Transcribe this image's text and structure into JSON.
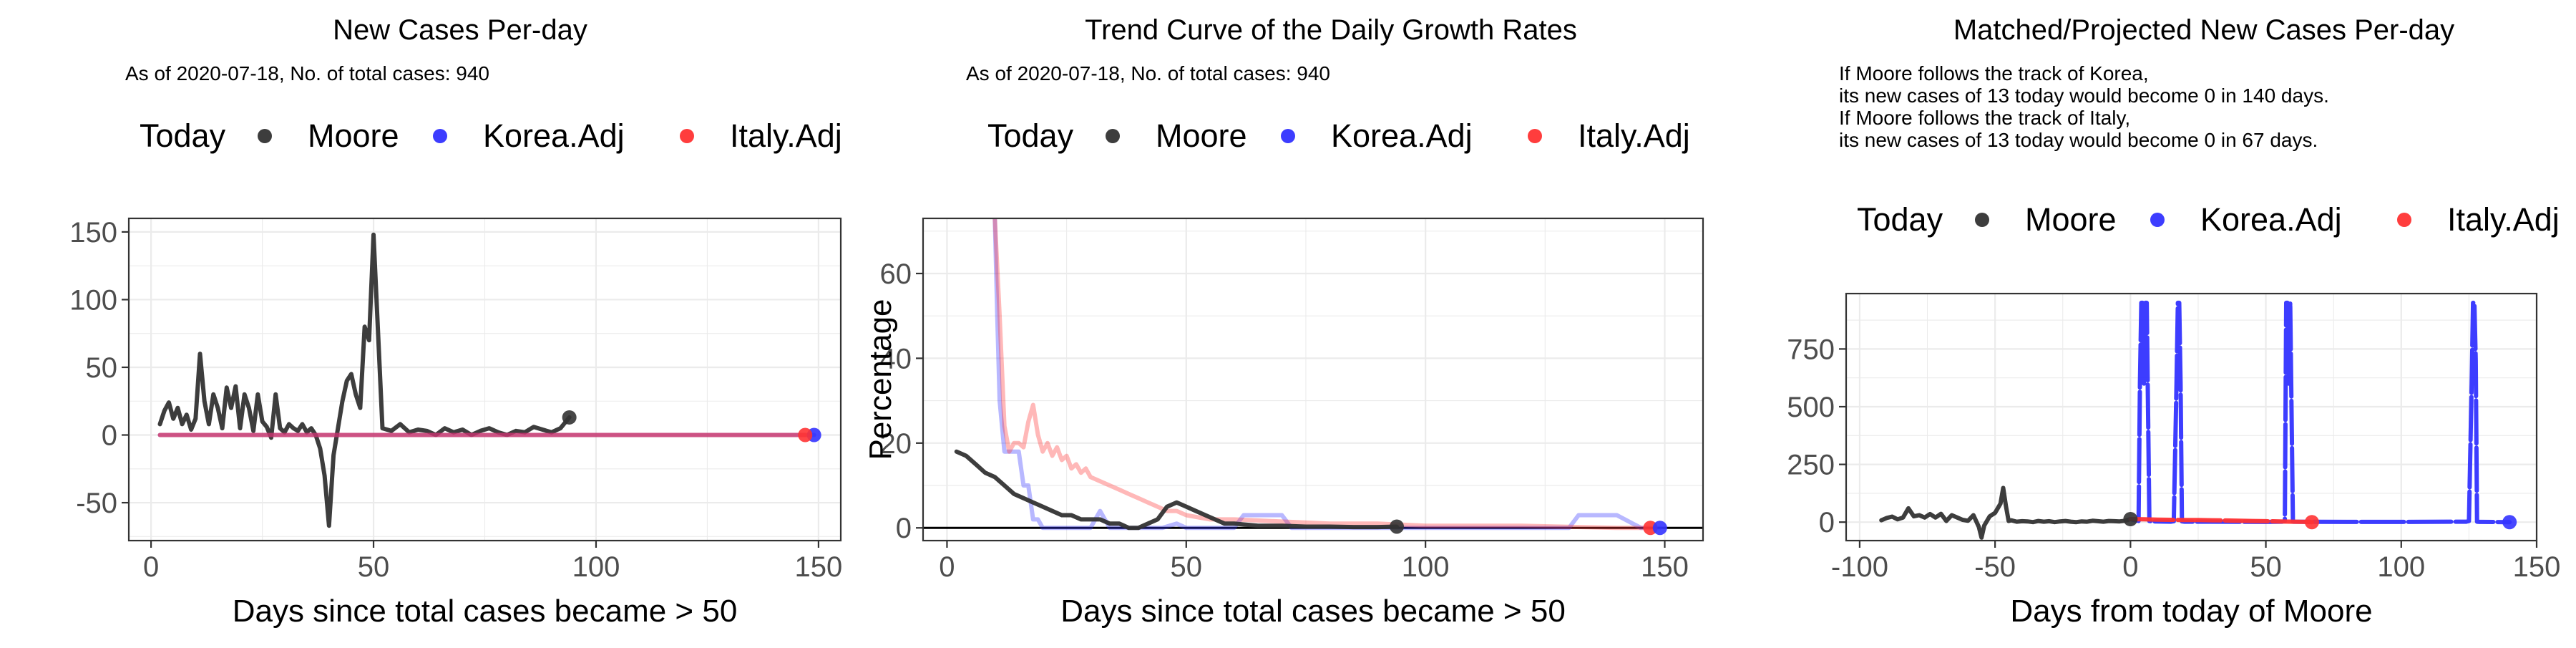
{
  "colors": {
    "moore": "#333333",
    "korea": "#3333ff",
    "italy": "#ff3333",
    "grid": "#ebebeb"
  },
  "legend": {
    "heading": "Today",
    "items": [
      "Moore",
      "Korea.Adj",
      "Italy.Adj"
    ]
  },
  "charts": [
    {
      "title": "New Cases Per-day",
      "subtitle": [
        "As of 2020-07-18, No. of total cases: 940"
      ],
      "chart_data": {
        "type": "line",
        "xlabel": "Days since total cases became > 50",
        "ylabel": "",
        "xlim": [
          -5,
          155
        ],
        "ylim": [
          -78,
          160
        ],
        "xticks": [
          0,
          50,
          100,
          150
        ],
        "yticks": [
          -50,
          0,
          50,
          100,
          150
        ],
        "series": [
          {
            "name": "Moore",
            "color": "#333333",
            "x": [
              2,
              3,
              4,
              5,
              6,
              7,
              8,
              9,
              10,
              11,
              12,
              13,
              14,
              15,
              16,
              17,
              18,
              19,
              20,
              21,
              22,
              23,
              24,
              25,
              26,
              27,
              28,
              29,
              30,
              31,
              32,
              33,
              34,
              35,
              36,
              37,
              38,
              39,
              40,
              41,
              42,
              43,
              44,
              45,
              46,
              47,
              48,
              49,
              50,
              52,
              54,
              56,
              58,
              60,
              62,
              64,
              66,
              68,
              70,
              72,
              74,
              76,
              78,
              80,
              82,
              84,
              86,
              88,
              90,
              92,
              94
            ],
            "y": [
              8,
              18,
              24,
              12,
              20,
              8,
              15,
              4,
              12,
              60,
              25,
              8,
              30,
              20,
              5,
              35,
              20,
              36,
              5,
              30,
              20,
              3,
              30,
              10,
              6,
              -2,
              30,
              5,
              2,
              8,
              5,
              3,
              8,
              2,
              5,
              0,
              -10,
              -30,
              -67,
              -15,
              5,
              25,
              40,
              45,
              30,
              20,
              80,
              70,
              148,
              5,
              3,
              8,
              2,
              4,
              3,
              0,
              5,
              2,
              4,
              0,
              3,
              5,
              2,
              0,
              3,
              2,
              6,
              4,
              2,
              5,
              13
            ]
          },
          {
            "name": "Korea.Adj",
            "color": "#3333ff",
            "x": [
              2,
              149
            ],
            "y": [
              0,
              0
            ]
          },
          {
            "name": "Italy.Adj",
            "color": "#ff3333",
            "x": [
              2,
              147
            ],
            "y": [
              0,
              0
            ]
          }
        ],
        "today_points": [
          {
            "series": "Moore",
            "x": 94,
            "y": 13
          },
          {
            "series": "Korea.Adj",
            "x": 149,
            "y": 0
          },
          {
            "series": "Italy.Adj",
            "x": 147,
            "y": 0
          }
        ]
      }
    },
    {
      "title": "Trend Curve of the Daily Growth Rates",
      "subtitle": [
        "As of 2020-07-18, No. of total cases: 940"
      ],
      "chart_data": {
        "type": "line",
        "xlabel": "Days since total cases became > 50",
        "ylabel": "Percentage",
        "xlim": [
          -5,
          158
        ],
        "ylim": [
          -3,
          73
        ],
        "xticks": [
          0,
          50,
          100,
          150
        ],
        "yticks": [
          0,
          20,
          40,
          60
        ],
        "series": [
          {
            "name": "Korea.Adj",
            "color": "#3333ff",
            "x": [
              10,
              10.5,
              11,
              12,
              13,
              14,
              15,
              16,
              17,
              18,
              19,
              20,
              22,
              24,
              30,
              32,
              34,
              40,
              45,
              48,
              50,
              55,
              60,
              62,
              64,
              66,
              70,
              72,
              75,
              80,
              85,
              90,
              95,
              100,
              110,
              120,
              130,
              132,
              134,
              140,
              145,
              149
            ],
            "y": [
              73,
              50,
              30,
              18,
              18,
              18,
              18,
              10,
              10,
              2,
              2,
              0,
              0,
              0,
              0,
              4,
              0,
              0,
              0,
              1,
              0,
              0,
              0,
              3,
              3,
              3,
              3,
              0,
              0,
              0,
              0,
              0,
              0,
              0,
              0,
              0,
              0,
              3,
              3,
              3,
              0,
              0
            ]
          },
          {
            "name": "Italy.Adj",
            "color": "#ff3333",
            "x": [
              10,
              11,
              12,
              13,
              14,
              15,
              16,
              17,
              18,
              19,
              20,
              21,
              22,
              23,
              24,
              25,
              26,
              27,
              28,
              29,
              30,
              32,
              34,
              36,
              38,
              40,
              42,
              44,
              46,
              48,
              50,
              55,
              60,
              70,
              80,
              90,
              100,
              120,
              140,
              147
            ],
            "y": [
              73,
              50,
              24,
              18,
              20,
              20,
              19,
              25,
              29,
              22,
              18,
              20,
              17,
              19,
              16,
              17,
              14,
              15,
              13,
              14,
              12,
              11,
              10,
              9,
              8,
              7,
              6,
              5,
              4,
              4,
              3,
              2,
              2,
              1.5,
              1,
              1,
              0.5,
              0.5,
              0,
              0
            ]
          },
          {
            "name": "Moore",
            "color": "#333333",
            "x": [
              2,
              4,
              6,
              8,
              10,
              12,
              14,
              16,
              18,
              20,
              22,
              24,
              26,
              28,
              30,
              32,
              34,
              36,
              38,
              40,
              42,
              44,
              46,
              48,
              50,
              52,
              54,
              56,
              58,
              60,
              65,
              70,
              75,
              80,
              85,
              90,
              94
            ],
            "y": [
              18,
              17,
              15,
              13,
              12,
              10,
              8,
              7,
              6,
              5,
              4,
              3,
              3,
              2,
              2,
              2,
              1,
              1,
              0,
              0,
              1,
              2,
              5,
              6,
              5,
              4,
              3,
              2,
              1,
              1,
              0.5,
              0.5,
              0.3,
              0.3,
              0.2,
              0.2,
              0.3
            ]
          }
        ],
        "today_points": [
          {
            "series": "Moore",
            "x": 94,
            "y": 0.3
          },
          {
            "series": "Italy.Adj",
            "x": 147,
            "y": 0
          },
          {
            "series": "Korea.Adj",
            "x": 149,
            "y": 0
          }
        ]
      }
    },
    {
      "title": "Matched/Projected New Cases Per-day",
      "subtitle": [
        "If Moore follows the track of Korea,",
        "its new cases of 13 today would become 0 in 140 days.",
        "If Moore follows the track of Italy,",
        "its new cases of 13 today would become 0 in 67 days."
      ],
      "chart_data": {
        "type": "line",
        "xlabel": "Days from today of Moore",
        "ylabel": "",
        "xlim": [
          -105,
          150
        ],
        "ylim": [
          -80,
          990
        ],
        "xticks": [
          -100,
          -50,
          0,
          50,
          100,
          150
        ],
        "yticks": [
          0,
          250,
          500,
          750
        ],
        "series": [
          {
            "name": "Moore",
            "color": "#333333",
            "x": [
              -92,
              -90,
              -88,
              -86,
              -84,
              -82,
              -80,
              -78,
              -76,
              -74,
              -72,
              -70,
              -68,
              -66,
              -64,
              -62,
              -60,
              -58,
              -56,
              -55,
              -54,
              -52,
              -50,
              -48,
              -47,
              -46,
              -45,
              -44,
              -42,
              -40,
              -38,
              -36,
              -34,
              -32,
              -30,
              -28,
              -26,
              -24,
              -22,
              -20,
              -18,
              -16,
              -14,
              -12,
              -10,
              -8,
              -6,
              -4,
              -2,
              0
            ],
            "y": [
              8,
              18,
              24,
              12,
              20,
              60,
              25,
              30,
              20,
              35,
              20,
              36,
              5,
              30,
              20,
              10,
              6,
              30,
              -20,
              -67,
              -15,
              25,
              40,
              80,
              148,
              70,
              5,
              8,
              2,
              4,
              3,
              0,
              5,
              2,
              4,
              0,
              3,
              5,
              2,
              0,
              3,
              2,
              6,
              4,
              2,
              5,
              4,
              3,
              6,
              13
            ]
          },
          {
            "name": "Korea.Adj",
            "color": "#3333ff",
            "x": [
              0,
              1,
              2,
              3,
              3.5,
              4,
              4.5,
              5,
              5.5,
              6,
              7,
              8,
              15,
              16,
              17,
              17.5,
              18,
              18.5,
              19,
              20,
              30,
              50,
              56,
              57,
              57.5,
              58,
              58.5,
              59,
              60,
              80,
              100,
              124,
              125,
              126,
              126.5,
              127,
              127.5,
              128,
              129,
              130,
              140
            ],
            "y": [
              13,
              10,
              8,
              5,
              600,
              950,
              950,
              600,
              950,
              950,
              5,
              3,
              2,
              4,
              600,
              950,
              950,
              600,
              3,
              2,
              2,
              1,
              2,
              5,
              950,
              950,
              600,
              950,
              2,
              1,
              1,
              2,
              5,
              600,
              950,
              950,
              700,
              2,
              1,
              1,
              0
            ]
          },
          {
            "name": "Italy.Adj",
            "color": "#ff3333",
            "x": [
              0,
              5,
              10,
              15,
              20,
              25,
              30,
              35,
              40,
              45,
              50,
              55,
              60,
              65,
              67
            ],
            "y": [
              13,
              12,
              11,
              10,
              9,
              9,
              8,
              7,
              6,
              5,
              4,
              3,
              2,
              1,
              0
            ]
          }
        ],
        "today_points": [
          {
            "series": "Moore",
            "x": 0,
            "y": 13
          },
          {
            "series": "Korea.Adj",
            "x": 140,
            "y": 0
          },
          {
            "series": "Italy.Adj",
            "x": 67,
            "y": 0
          }
        ]
      }
    }
  ]
}
